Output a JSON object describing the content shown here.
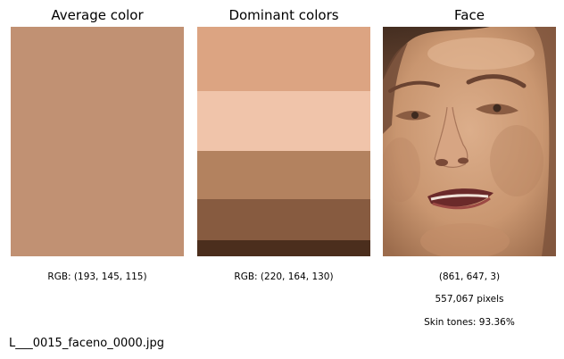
{
  "panels": {
    "average": {
      "title": "Average color",
      "color": "#C19173",
      "caption": "RGB: (193, 145, 115)"
    },
    "dominant": {
      "title": "Dominant colors",
      "caption": "RGB: (220, 164, 130)",
      "colors": [
        {
          "hex": "#DCA482",
          "share": 0.28
        },
        {
          "hex": "#F0C4AA",
          "share": 0.26
        },
        {
          "hex": "#B3825F",
          "share": 0.21
        },
        {
          "hex": "#875B40",
          "share": 0.18
        },
        {
          "hex": "#4B2E1D",
          "share": 0.07
        }
      ]
    },
    "face": {
      "title": "Face",
      "shape": "(861, 647, 3)",
      "pixels": "557,067 pixels",
      "skin_tones": "Skin tones: 93.36%"
    }
  },
  "filename": "L___0015_faceno_0000.jpg"
}
